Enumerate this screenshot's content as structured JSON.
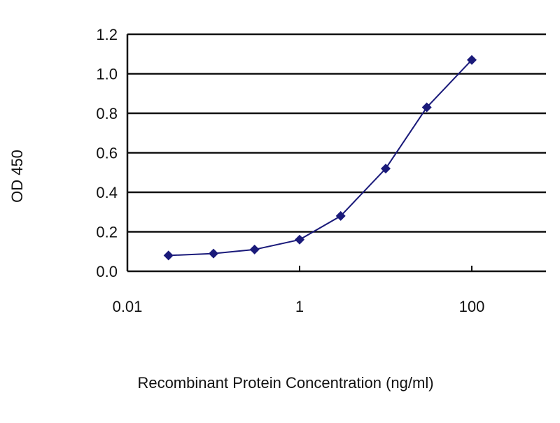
{
  "chart_data": {
    "type": "line",
    "title": "",
    "xlabel": "Recombinant Protein Concentration (ng/ml)",
    "ylabel": "OD 450",
    "x_scale": "log",
    "xlim": [
      0.01,
      1000
    ],
    "ylim": [
      0,
      1.2
    ],
    "x_ticks": [
      0.01,
      1,
      100
    ],
    "x_tick_labels": [
      "0.01",
      "1",
      "100"
    ],
    "y_ticks": [
      0,
      0.2,
      0.4,
      0.6,
      0.8,
      1.0,
      1.2
    ],
    "y_tick_labels": [
      "0.0",
      "0.2",
      "0.4",
      "0.6",
      "0.8",
      "1.0",
      "1.2"
    ],
    "grid": "horizontal",
    "series": [
      {
        "color": "#1a1a7a",
        "marker": "diamond",
        "x": [
          0.03,
          0.1,
          0.3,
          1,
          3,
          10,
          30,
          100
        ],
        "y": [
          0.08,
          0.09,
          0.11,
          0.16,
          0.28,
          0.52,
          0.83,
          1.07
        ]
      }
    ]
  }
}
